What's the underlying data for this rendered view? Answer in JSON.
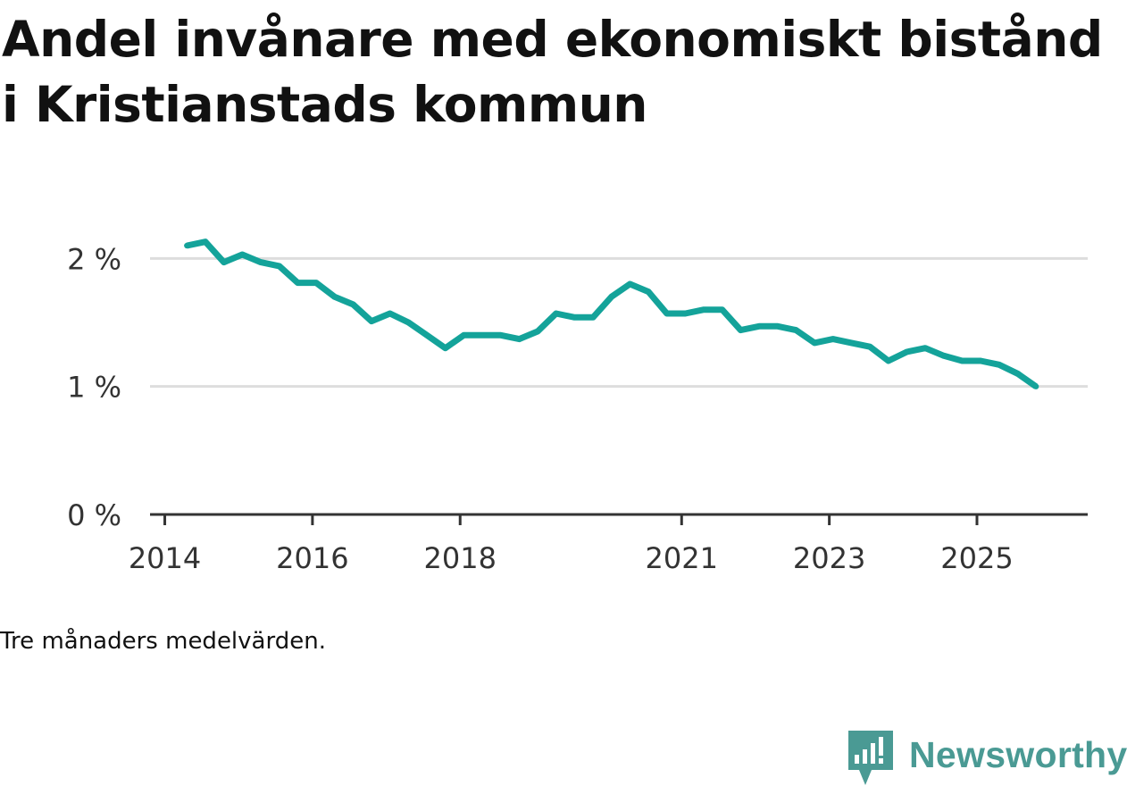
{
  "title": "Andel invånare med ekonomiskt bistånd i Kristianstads kommun",
  "note": "Tre månaders medelvärden.",
  "brand": {
    "name": "Newsworthy",
    "icon": "newsworthy-logo-icon",
    "color": "#4a9a94"
  },
  "colors": {
    "line": "#14a39a",
    "grid": "#dddddd",
    "axis": "#333333"
  },
  "chart_data": {
    "type": "line",
    "title": "Andel invånare med ekonomiskt bistånd i Kristianstads kommun",
    "xlabel": "",
    "ylabel": "",
    "ylim": [
      0,
      2.4
    ],
    "xlim": [
      2013.8,
      2026.5
    ],
    "y_ticks": [
      {
        "value": 0,
        "label": "0 %"
      },
      {
        "value": 1,
        "label": "1 %"
      },
      {
        "value": 2,
        "label": "2 %"
      }
    ],
    "x_ticks": [
      {
        "value": 2014,
        "label": "2014"
      },
      {
        "value": 2016,
        "label": "2016"
      },
      {
        "value": 2018,
        "label": "2018"
      },
      {
        "value": 2021,
        "label": "2021"
      },
      {
        "value": 2023,
        "label": "2023"
      },
      {
        "value": 2025,
        "label": "2025"
      }
    ],
    "series": [
      {
        "name": "Andel invånare med ekonomiskt bistånd",
        "x": [
          2014.3,
          2014.55,
          2014.8,
          2015.05,
          2015.3,
          2015.55,
          2015.8,
          2016.05,
          2016.3,
          2016.55,
          2016.8,
          2017.05,
          2017.3,
          2017.55,
          2017.8,
          2018.05,
          2018.3,
          2018.55,
          2018.8,
          2019.05,
          2019.3,
          2019.55,
          2019.8,
          2020.05,
          2020.3,
          2020.55,
          2020.8,
          2021.05,
          2021.3,
          2021.55,
          2021.8,
          2022.05,
          2022.3,
          2022.55,
          2022.8,
          2023.05,
          2023.3,
          2023.55,
          2023.8,
          2024.05,
          2024.3,
          2024.55,
          2024.8,
          2025.05,
          2025.3,
          2025.55,
          2025.8
        ],
        "values": [
          2.1,
          2.13,
          1.97,
          2.03,
          1.97,
          1.94,
          1.81,
          1.81,
          1.7,
          1.64,
          1.51,
          1.57,
          1.5,
          1.4,
          1.3,
          1.4,
          1.4,
          1.4,
          1.37,
          1.43,
          1.57,
          1.54,
          1.54,
          1.7,
          1.8,
          1.74,
          1.57,
          1.57,
          1.6,
          1.6,
          1.44,
          1.47,
          1.47,
          1.44,
          1.34,
          1.37,
          1.34,
          1.31,
          1.2,
          1.27,
          1.3,
          1.24,
          1.2,
          1.2,
          1.17,
          1.1,
          1.0
        ]
      }
    ]
  }
}
